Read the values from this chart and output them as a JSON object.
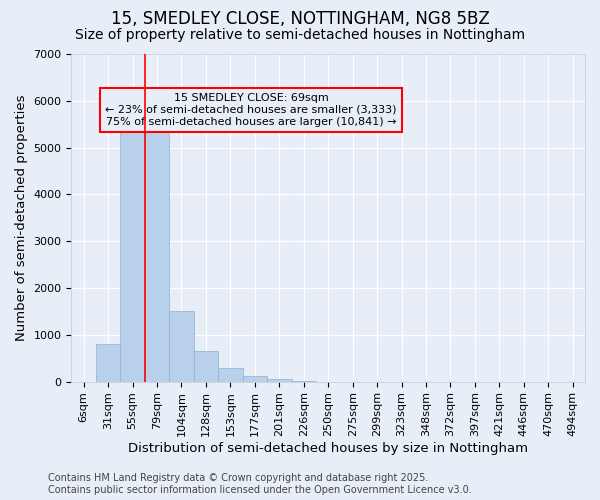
{
  "title": "15, SMEDLEY CLOSE, NOTTINGHAM, NG8 5BZ",
  "subtitle": "Size of property relative to semi-detached houses in Nottingham",
  "xlabel": "Distribution of semi-detached houses by size in Nottingham",
  "ylabel": "Number of semi-detached properties",
  "footer_line1": "Contains HM Land Registry data © Crown copyright and database right 2025.",
  "footer_line2": "Contains public sector information licensed under the Open Government Licence v3.0.",
  "annotation_title": "15 SMEDLEY CLOSE: 69sqm",
  "annotation_line2": "← 23% of semi-detached houses are smaller (3,333)",
  "annotation_line3": "75% of semi-detached houses are larger (10,841) →",
  "bins": [
    "6sqm",
    "31sqm",
    "55sqm",
    "79sqm",
    "104sqm",
    "128sqm",
    "153sqm",
    "177sqm",
    "201sqm",
    "226sqm",
    "250sqm",
    "275sqm",
    "299sqm",
    "323sqm",
    "348sqm",
    "372sqm",
    "397sqm",
    "421sqm",
    "446sqm",
    "470sqm",
    "494sqm"
  ],
  "values": [
    0,
    800,
    5500,
    5500,
    1500,
    650,
    280,
    130,
    50,
    20,
    0,
    0,
    0,
    0,
    0,
    0,
    0,
    0,
    0,
    0,
    0
  ],
  "bar_color": "#b8d0ea",
  "bar_edge_color": "#8ab4d8",
  "red_line_bin_index": 2,
  "ylim": [
    0,
    7000
  ],
  "background_color": "#e8eef8",
  "grid_color": "#ffffff",
  "title_fontsize": 12,
  "subtitle_fontsize": 10,
  "axis_label_fontsize": 9.5,
  "tick_fontsize": 8,
  "annotation_fontsize": 8,
  "footer_fontsize": 7
}
